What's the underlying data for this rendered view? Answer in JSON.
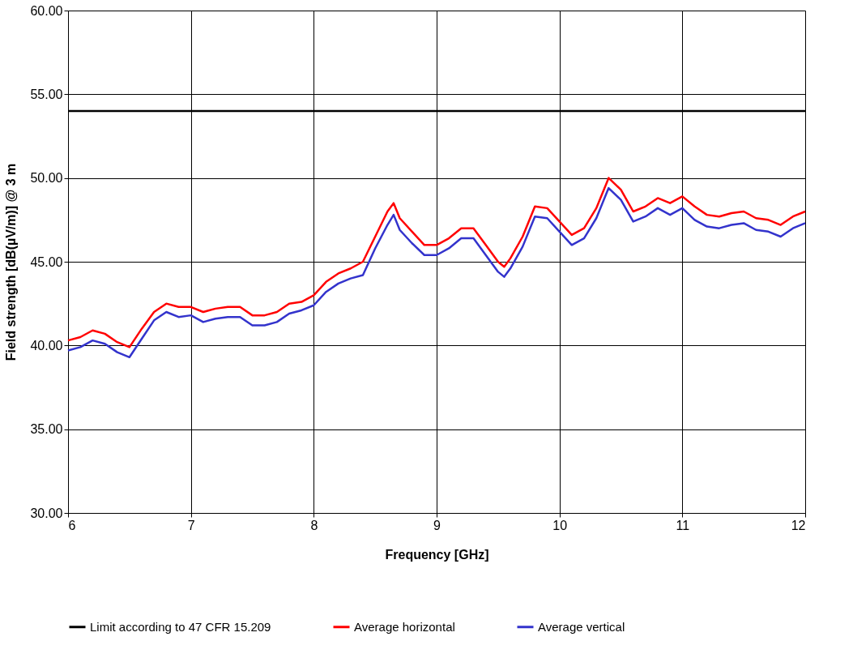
{
  "chart_data": {
    "type": "line",
    "xlabel": "Frequency [GHz]",
    "ylabel": "Field strength [dB(µV/m)] @ 3 m",
    "xlim": [
      6,
      12
    ],
    "xticks": [
      6,
      7,
      8,
      9,
      10,
      11,
      12
    ],
    "ylim": [
      30,
      60
    ],
    "yticks": [
      {
        "value": 30,
        "label": "30.00"
      },
      {
        "value": 35,
        "label": "35.00"
      },
      {
        "value": 40,
        "label": "40.00"
      },
      {
        "value": 45,
        "label": "45.00"
      },
      {
        "value": 50,
        "label": "50.00"
      },
      {
        "value": 55,
        "label": "55.00"
      },
      {
        "value": 60,
        "label": "60.00"
      }
    ],
    "grid": true,
    "legend": "bottom",
    "marker": "none",
    "line_style": "solid",
    "x": [
      6.0,
      6.1,
      6.2,
      6.3,
      6.4,
      6.5,
      6.6,
      6.7,
      6.8,
      6.9,
      7.0,
      7.1,
      7.2,
      7.3,
      7.4,
      7.5,
      7.6,
      7.7,
      7.8,
      7.9,
      8.0,
      8.1,
      8.2,
      8.3,
      8.4,
      8.5,
      8.6,
      8.65,
      8.7,
      8.8,
      8.9,
      9.0,
      9.1,
      9.2,
      9.3,
      9.4,
      9.5,
      9.55,
      9.6,
      9.7,
      9.8,
      9.9,
      10.0,
      10.1,
      10.2,
      10.3,
      10.4,
      10.5,
      10.6,
      10.7,
      10.8,
      10.9,
      11.0,
      11.1,
      11.2,
      11.3,
      11.4,
      11.5,
      11.6,
      11.7,
      11.8,
      11.9,
      12.0
    ],
    "series": [
      {
        "name": "Limit according to 47 CFR 15.209",
        "color": "#000000",
        "x": [
          6,
          12
        ],
        "values": [
          54,
          54
        ]
      },
      {
        "name": "Average horizontal",
        "color": "#ff0000",
        "values": [
          40.3,
          40.5,
          40.9,
          40.7,
          40.2,
          39.9,
          41.0,
          42.0,
          42.5,
          42.3,
          42.3,
          42.0,
          42.2,
          42.3,
          42.3,
          41.8,
          41.8,
          42.0,
          42.5,
          42.6,
          43.0,
          43.8,
          44.3,
          44.6,
          45.0,
          46.5,
          48.0,
          48.5,
          47.6,
          46.8,
          46.0,
          46.0,
          46.4,
          47.0,
          47.0,
          46.0,
          45.0,
          44.7,
          45.2,
          46.5,
          48.3,
          48.2,
          47.4,
          46.6,
          47.0,
          48.2,
          50.0,
          49.3,
          48.0,
          48.3,
          48.8,
          48.5,
          48.9,
          48.3,
          47.8,
          47.7,
          47.9,
          48.0,
          47.6,
          47.5,
          47.2,
          47.7,
          48.0
        ]
      },
      {
        "name": "Average vertical",
        "color": "#3333cc",
        "values": [
          39.7,
          39.9,
          40.3,
          40.1,
          39.6,
          39.3,
          40.4,
          41.5,
          42.0,
          41.7,
          41.8,
          41.4,
          41.6,
          41.7,
          41.7,
          41.2,
          41.2,
          41.4,
          41.9,
          42.1,
          42.4,
          43.2,
          43.7,
          44.0,
          44.2,
          45.8,
          47.2,
          47.8,
          46.9,
          46.1,
          45.4,
          45.4,
          45.8,
          46.4,
          46.4,
          45.4,
          44.4,
          44.1,
          44.6,
          45.9,
          47.7,
          47.6,
          46.8,
          46.0,
          46.4,
          47.6,
          49.4,
          48.7,
          47.4,
          47.7,
          48.2,
          47.8,
          48.2,
          47.5,
          47.1,
          47.0,
          47.2,
          47.3,
          46.9,
          46.8,
          46.5,
          47.0,
          47.3
        ]
      }
    ]
  }
}
